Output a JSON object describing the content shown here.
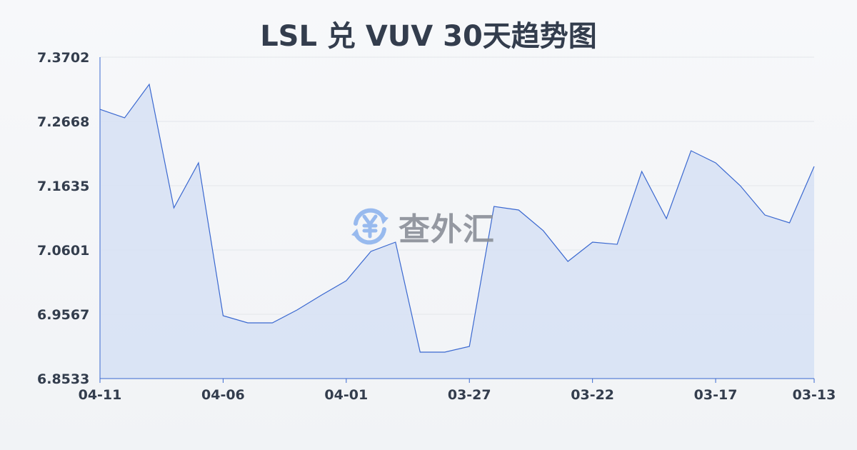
{
  "chart_data": {
    "type": "area",
    "title": "LSL 兑 VUV 30天趋势图",
    "xlabel": "",
    "ylabel": "",
    "ylim": [
      6.8533,
      7.3702
    ],
    "y_ticks": [
      "7.3702",
      "7.2668",
      "7.1635",
      "7.0601",
      "6.9567",
      "6.8533"
    ],
    "x_ticks": [
      "04-11",
      "04-06",
      "04-01",
      "03-27",
      "03-22",
      "03-17",
      "03-13"
    ],
    "grid": true,
    "colors": {
      "line": "#3a68d0",
      "fill": "#d6e1f5",
      "grid": "#e3e6ea"
    },
    "x": [
      "04-11",
      "04-10",
      "04-09",
      "04-08",
      "04-07",
      "04-06",
      "04-05",
      "04-04",
      "04-03",
      "04-02",
      "04-01",
      "03-31",
      "03-30",
      "03-29",
      "03-28",
      "03-27",
      "03-26",
      "03-25",
      "03-24",
      "03-23",
      "03-22",
      "03-21",
      "03-20",
      "03-19",
      "03-18",
      "03-17",
      "03-16",
      "03-15",
      "03-14",
      "03-13"
    ],
    "values": [
      7.2863,
      7.2726,
      7.3265,
      7.1278,
      7.2002,
      6.9544,
      6.9429,
      6.9429,
      6.9636,
      6.9877,
      7.0107,
      7.0578,
      7.0727,
      6.8958,
      6.8958,
      6.905,
      7.1301,
      7.1244,
      7.0911,
      7.0417,
      7.0727,
      7.0692,
      7.1864,
      7.1106,
      7.2197,
      7.2002,
      7.1634,
      7.1163,
      7.1037,
      7.1944
    ]
  },
  "watermark": {
    "text": "查外汇",
    "icon": "yen-exchange-icon"
  }
}
